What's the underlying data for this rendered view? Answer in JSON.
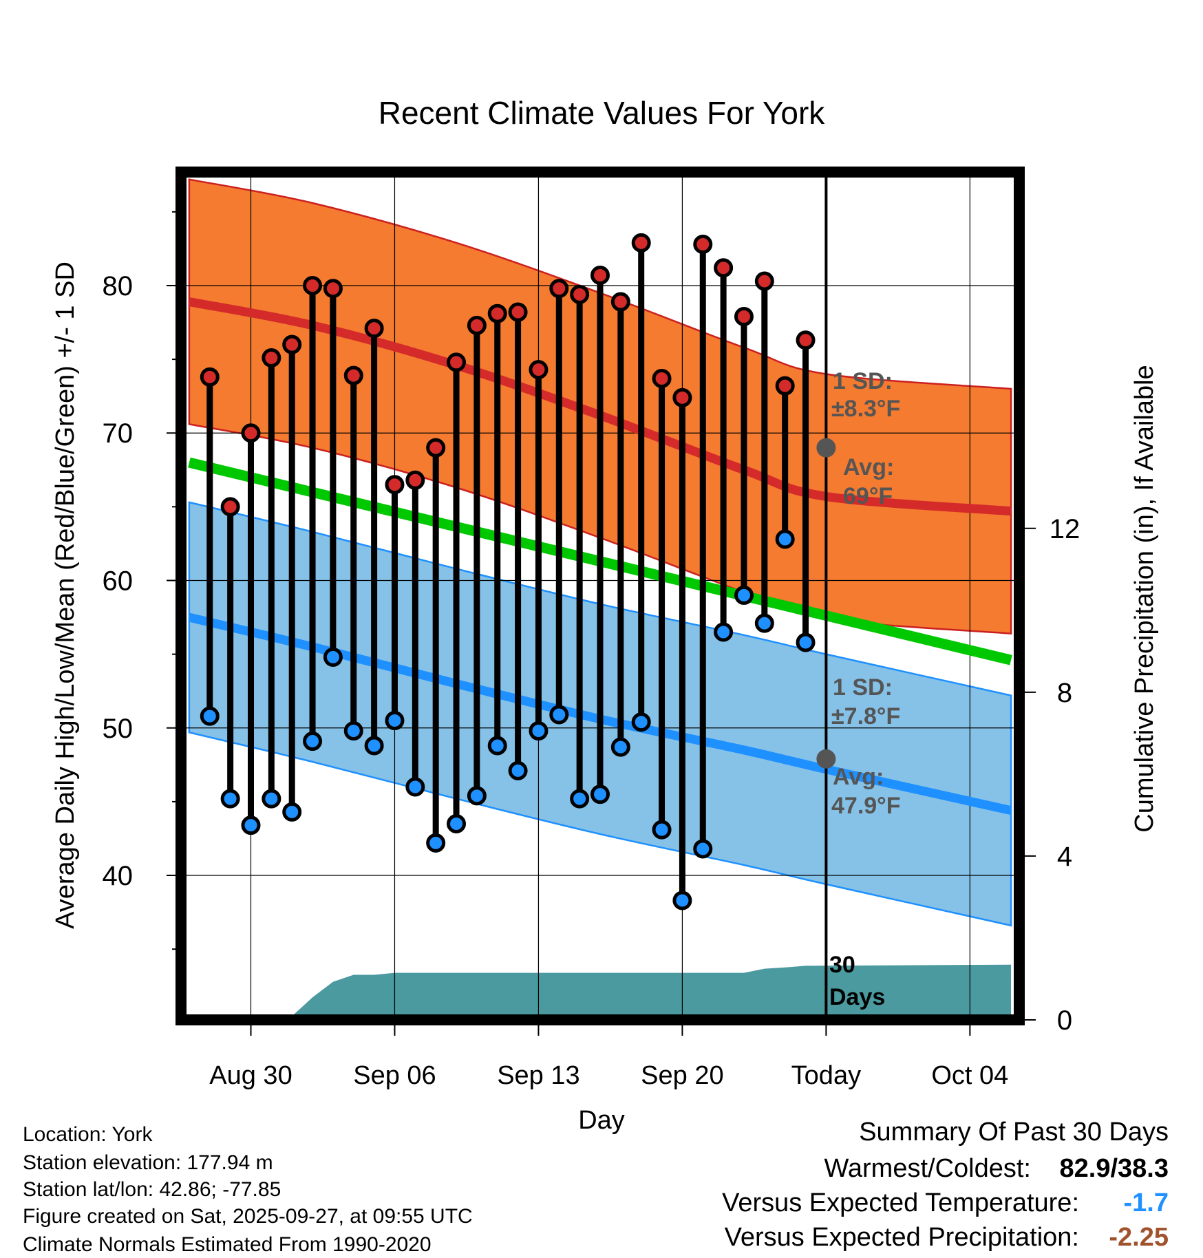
{
  "chart_data": {
    "type": "climate-range",
    "title": "Recent Climate Values For York",
    "xlabel": "Day",
    "ylabel_left": "Average Daily High/Low/Mean (Red/Blue/Green) +/- 1 SD",
    "ylabel_right": "Cumulative Precipitation (in), If Available",
    "x_range": [
      -3.4,
      37.4
    ],
    "ylim_left": [
      30.2,
      87.7
    ],
    "ylim_right": [
      0,
      20.7
    ],
    "x_ticks": [
      {
        "x": 0,
        "label": "Aug 30"
      },
      {
        "x": 7,
        "label": "Sep 06"
      },
      {
        "x": 14,
        "label": "Sep 13"
      },
      {
        "x": 21,
        "label": "Sep 20"
      },
      {
        "x": 28,
        "label": "Today"
      },
      {
        "x": 35,
        "label": "Oct 04"
      }
    ],
    "y_ticks_left": [
      40,
      50,
      60,
      70,
      80
    ],
    "y_minor_left": [
      35,
      45,
      55,
      65,
      75,
      85
    ],
    "y_ticks_right": [
      0,
      4,
      8,
      12
    ],
    "days": [
      -2,
      -1,
      0,
      1,
      2,
      3,
      4,
      5,
      6,
      7,
      8,
      9,
      10,
      11,
      12,
      13,
      14,
      15,
      16,
      17,
      18,
      19,
      20,
      21,
      22,
      23,
      24,
      25,
      26,
      27
    ],
    "highs": [
      73.8,
      65.0,
      70.0,
      75.1,
      76.0,
      80.0,
      79.8,
      73.9,
      77.1,
      66.5,
      66.8,
      69.0,
      74.8,
      77.3,
      78.1,
      78.2,
      74.3,
      79.8,
      79.4,
      80.7,
      78.9,
      82.9,
      73.7,
      72.4,
      82.8,
      81.2,
      77.9,
      80.3,
      73.2,
      76.3
    ],
    "lows": [
      50.8,
      45.2,
      43.4,
      45.2,
      44.3,
      49.1,
      54.8,
      49.8,
      48.8,
      50.5,
      46.0,
      42.2,
      43.5,
      45.4,
      48.8,
      47.1,
      49.8,
      50.9,
      45.2,
      45.5,
      48.7,
      50.4,
      43.1,
      38.3,
      41.8,
      56.5,
      59.0,
      57.1,
      62.8,
      55.8
    ],
    "normal_high": {
      "x": [
        -3,
        3,
        10,
        17,
        24,
        28,
        37
      ],
      "mean": [
        78.9,
        77.3,
        74.6,
        71.2,
        67.5,
        65.7,
        64.7
      ],
      "sd": 8.3
    },
    "normal_mean": {
      "x": [
        -3,
        37
      ],
      "y": [
        68.0,
        54.6
      ]
    },
    "normal_low": {
      "x": [
        -3,
        3,
        10,
        17,
        24,
        28,
        37
      ],
      "mean": [
        57.5,
        55.5,
        53.0,
        50.6,
        48.5,
        47.2,
        44.4
      ],
      "sd": 7.8
    },
    "precip": {
      "x": [
        -2,
        0,
        1,
        2,
        3,
        4,
        5,
        6,
        7,
        8,
        24,
        25,
        26,
        27,
        37
      ],
      "y": [
        0.05,
        0.07,
        0.09,
        0.09,
        0.55,
        0.93,
        1.1,
        1.1,
        1.15,
        1.15,
        1.15,
        1.25,
        1.28,
        1.32,
        1.35
      ]
    },
    "today_x": 28,
    "today_marker_high": 69.0,
    "today_marker_low": 47.9,
    "annotations": {
      "high_sd_label": "1 SD:",
      "high_sd_value": "±8.3°F",
      "high_avg_label": "Avg:",
      "high_avg_value": "69°F",
      "low_sd_label": "1 SD:",
      "low_sd_value": "±7.8°F",
      "low_avg_label": "Avg:",
      "low_avg_value": "47.9°F",
      "precip_label_1": "30",
      "precip_label_2": "Days"
    },
    "colors": {
      "high_band": "#f47b2f",
      "high_line": "#d42a2a",
      "mean_line": "#00c800",
      "low_band": "#86c2e8",
      "low_line": "#1e90ff",
      "precip_fill": "#4a9aa0",
      "high_dot": "#d42a2a",
      "low_dot": "#1e90ff",
      "annotation_text": "#555555",
      "coldest_value": "#1e90ff",
      "precip_value": "#a0522d"
    }
  },
  "footer": {
    "location": "Location: York",
    "elevation": "Station elevation: 177.94 m",
    "latlon": "Station lat/lon: 42.86; -77.85",
    "created": "Figure created on Sat, 2025-09-27, at 09:55 UTC",
    "normals": "Climate Normals Estimated From 1990-2020"
  },
  "summary": {
    "title": "Summary Of Past 30 Days",
    "warmest_label": "Warmest/Coldest:",
    "warmest_value": "82.9/38.3",
    "temp_label": "Versus Expected Temperature:",
    "temp_value": "-1.7",
    "precip_label": "Versus Expected Precipitation:",
    "precip_value": "-2.25"
  }
}
